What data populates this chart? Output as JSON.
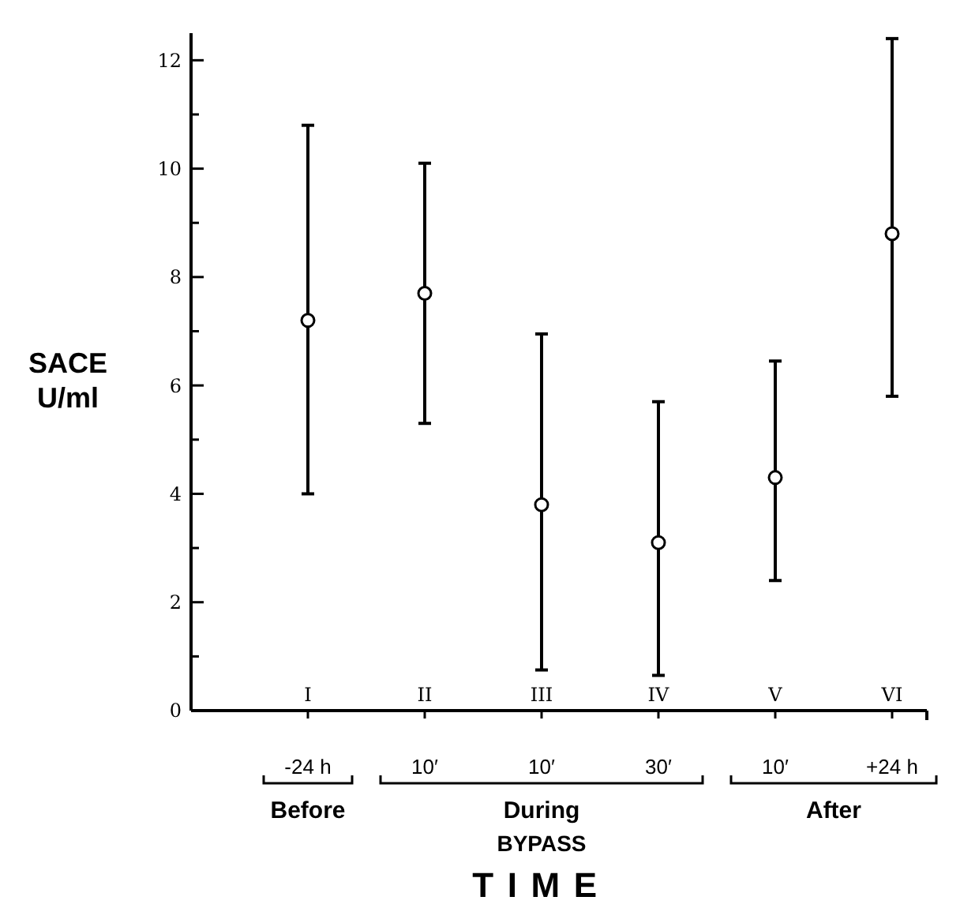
{
  "chart_data": {
    "type": "scatter",
    "xlabel": "TIME",
    "ylabel": "SACE U/ml",
    "categories": [
      "I",
      "II",
      "III",
      "IV",
      "V",
      "VI"
    ],
    "series": [
      {
        "color": "#000000",
        "values": [
          7.2,
          7.7,
          3.8,
          3.1,
          4.3,
          8.8
        ],
        "errors": [
          [
            4.0,
            10.8
          ],
          [
            5.3,
            10.1
          ],
          [
            0.75,
            6.95
          ],
          [
            0.65,
            5.7
          ],
          [
            2.4,
            6.45
          ],
          [
            5.8,
            12.4
          ]
        ]
      }
    ],
    "marker": "circle",
    "ylim": [
      0,
      12.5
    ],
    "yticks": [
      {
        "value": 0,
        "label": "0"
      },
      {
        "value": 1,
        "label": null
      },
      2,
      {
        "value": 3,
        "label": null
      },
      4,
      {
        "value": 5,
        "label": null
      },
      6,
      {
        "value": 7,
        "label": null
      },
      8,
      {
        "value": 9,
        "label": null
      },
      10,
      {
        "value": 11,
        "label": null
      },
      12
    ],
    "annotations": [
      "-24 h",
      "10′",
      "10′",
      "30′",
      "10′",
      "+24 h",
      "Before",
      "During",
      "After",
      "BYPASS"
    ]
  }
}
